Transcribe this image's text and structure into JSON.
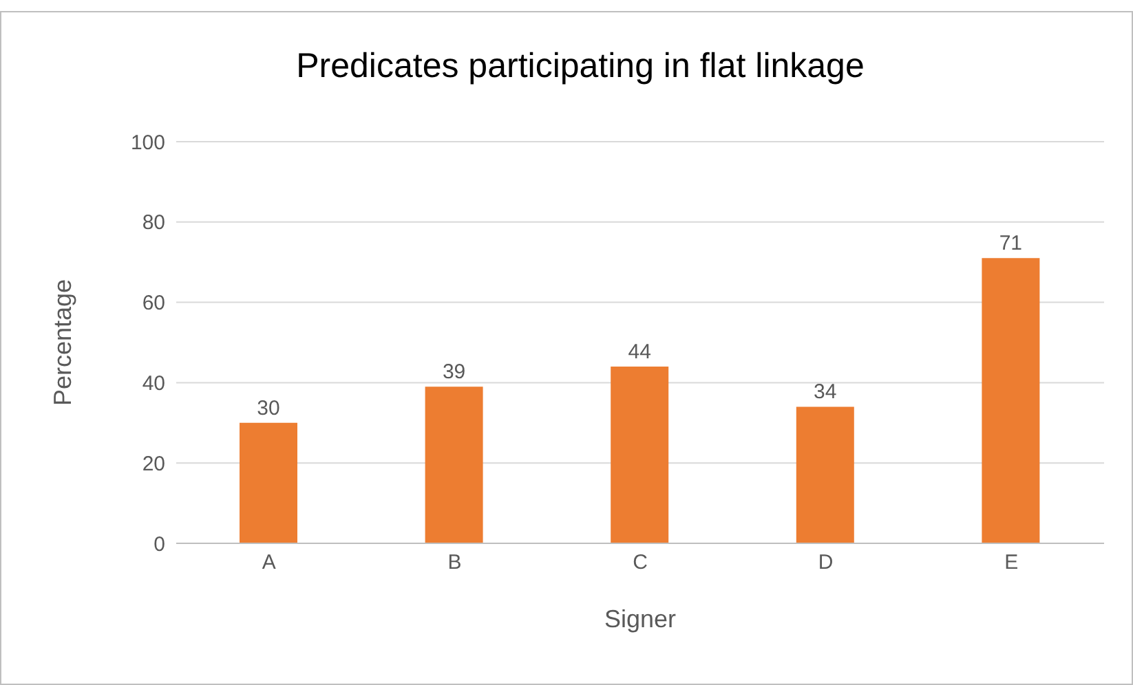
{
  "chart_data": {
    "type": "bar",
    "title": "Predicates participating in flat linkage",
    "xlabel": "Signer",
    "ylabel": "Percentage",
    "categories": [
      "A",
      "B",
      "C",
      "D",
      "E"
    ],
    "values": [
      30,
      39,
      44,
      34,
      71
    ],
    "color": "#ed7d31",
    "ylim": [
      0,
      100
    ],
    "yticks": [
      0,
      20,
      40,
      60,
      80,
      100
    ],
    "grid": "y",
    "data_labels": true
  }
}
